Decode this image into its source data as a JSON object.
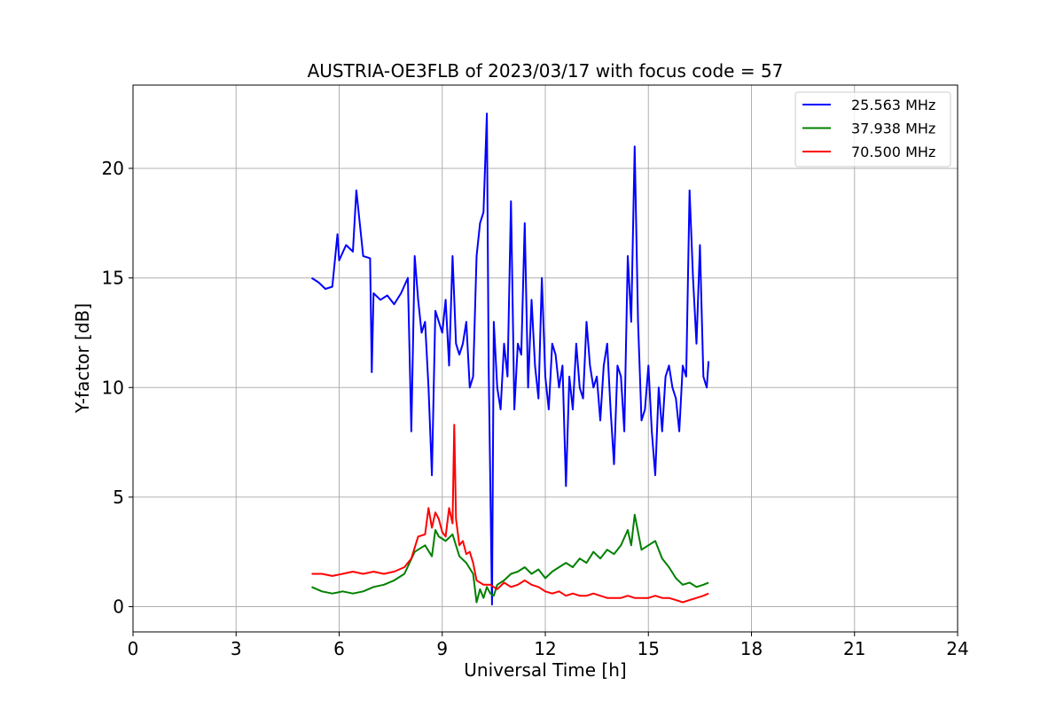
{
  "chart_data": {
    "type": "line",
    "title": "AUSTRIA-OE3FLB of 2023/03/17 with focus code = 57",
    "xlabel": "Universal Time [h]",
    "ylabel": "Y-factor [dB]",
    "xlim": [
      0,
      24
    ],
    "ylim": [
      -1.15,
      23.8
    ],
    "xticks": [
      0,
      3,
      6,
      9,
      12,
      15,
      18,
      21,
      24
    ],
    "yticks": [
      0,
      5,
      10,
      15,
      20
    ],
    "grid": true,
    "legend_position": "top-right",
    "series": [
      {
        "name": "25.563 MHz",
        "color": "#0000ff",
        "x": [
          5.2,
          5.4,
          5.6,
          5.8,
          5.95,
          6.0,
          6.2,
          6.4,
          6.5,
          6.7,
          6.9,
          6.95,
          7.0,
          7.2,
          7.4,
          7.6,
          7.8,
          8.0,
          8.1,
          8.15,
          8.2,
          8.3,
          8.4,
          8.5,
          8.6,
          8.7,
          8.8,
          8.9,
          9.0,
          9.1,
          9.2,
          9.3,
          9.4,
          9.5,
          9.6,
          9.7,
          9.8,
          9.9,
          10.0,
          10.1,
          10.2,
          10.3,
          10.35,
          10.45,
          10.5,
          10.6,
          10.7,
          10.8,
          10.9,
          11.0,
          11.1,
          11.2,
          11.3,
          11.4,
          11.5,
          11.6,
          11.7,
          11.8,
          11.9,
          12.0,
          12.1,
          12.2,
          12.3,
          12.4,
          12.5,
          12.6,
          12.7,
          12.8,
          12.9,
          13.0,
          13.1,
          13.2,
          13.3,
          13.4,
          13.5,
          13.6,
          13.7,
          13.8,
          13.9,
          14.0,
          14.1,
          14.2,
          14.3,
          14.4,
          14.5,
          14.6,
          14.7,
          14.8,
          14.9,
          15.0,
          15.1,
          15.2,
          15.3,
          15.4,
          15.5,
          15.6,
          15.7,
          15.8,
          15.9,
          16.0,
          16.1,
          16.2,
          16.3,
          16.4,
          16.5,
          16.6,
          16.7,
          16.75
        ],
        "y": [
          15.0,
          14.8,
          14.5,
          14.6,
          17.0,
          15.8,
          16.5,
          16.2,
          19.0,
          16.0,
          15.9,
          10.7,
          14.3,
          14.0,
          14.2,
          13.8,
          14.3,
          15.0,
          8.0,
          12.0,
          16.0,
          14.0,
          12.5,
          13.0,
          10.0,
          6.0,
          13.5,
          13.0,
          12.5,
          14.0,
          11.0,
          16.0,
          12.0,
          11.5,
          12.0,
          13.0,
          10.0,
          10.5,
          16.0,
          17.5,
          18.0,
          22.5,
          11.0,
          0.1,
          13.0,
          10.0,
          9.0,
          12.0,
          10.5,
          18.5,
          9.0,
          12.0,
          11.5,
          17.5,
          10.0,
          14.0,
          11.0,
          9.5,
          15.0,
          10.5,
          9.0,
          12.0,
          11.5,
          10.0,
          11.0,
          5.5,
          10.5,
          9.0,
          12.0,
          10.0,
          9.5,
          13.0,
          11.0,
          10.0,
          10.5,
          8.5,
          11.0,
          12.0,
          9.0,
          6.5,
          11.0,
          10.5,
          8.0,
          16.0,
          13.0,
          21.0,
          13.0,
          8.5,
          9.0,
          11.0,
          8.0,
          6.0,
          10.0,
          8.0,
          10.5,
          11.0,
          10.0,
          9.5,
          8.0,
          11.0,
          10.5,
          19.0,
          15.0,
          12.0,
          16.5,
          10.5,
          10.0,
          11.2
        ]
      },
      {
        "name": "37.938 MHz",
        "color": "#008000",
        "x": [
          5.2,
          5.5,
          5.8,
          6.1,
          6.4,
          6.7,
          7.0,
          7.3,
          7.6,
          7.9,
          8.2,
          8.5,
          8.7,
          8.8,
          8.9,
          9.1,
          9.3,
          9.5,
          9.7,
          9.9,
          10.0,
          10.1,
          10.2,
          10.3,
          10.4,
          10.5,
          10.6,
          10.8,
          11.0,
          11.2,
          11.4,
          11.6,
          11.8,
          12.0,
          12.2,
          12.4,
          12.6,
          12.8,
          13.0,
          13.2,
          13.4,
          13.6,
          13.8,
          14.0,
          14.2,
          14.4,
          14.5,
          14.6,
          14.8,
          15.0,
          15.2,
          15.4,
          15.6,
          15.8,
          16.0,
          16.2,
          16.4,
          16.6,
          16.75
        ],
        "y": [
          0.9,
          0.7,
          0.6,
          0.7,
          0.6,
          0.7,
          0.9,
          1.0,
          1.2,
          1.5,
          2.5,
          2.8,
          2.3,
          3.5,
          3.2,
          3.0,
          3.3,
          2.3,
          2.0,
          1.5,
          0.2,
          0.8,
          0.4,
          0.9,
          0.6,
          0.5,
          1.0,
          1.2,
          1.5,
          1.6,
          1.8,
          1.5,
          1.7,
          1.3,
          1.6,
          1.8,
          2.0,
          1.8,
          2.2,
          2.0,
          2.5,
          2.2,
          2.6,
          2.4,
          2.8,
          3.5,
          2.8,
          4.2,
          2.6,
          2.8,
          3.0,
          2.2,
          1.8,
          1.3,
          1.0,
          1.1,
          0.9,
          1.0,
          1.1
        ]
      },
      {
        "name": "70.500 MHz",
        "color": "#ff0000",
        "x": [
          5.2,
          5.5,
          5.8,
          6.1,
          6.4,
          6.7,
          7.0,
          7.3,
          7.6,
          7.9,
          8.1,
          8.3,
          8.5,
          8.6,
          8.7,
          8.8,
          8.9,
          9.0,
          9.1,
          9.2,
          9.3,
          9.35,
          9.4,
          9.5,
          9.6,
          9.7,
          9.8,
          9.9,
          10.0,
          10.2,
          10.4,
          10.6,
          10.8,
          11.0,
          11.2,
          11.4,
          11.6,
          11.8,
          12.0,
          12.2,
          12.4,
          12.6,
          12.8,
          13.0,
          13.2,
          13.4,
          13.6,
          13.8,
          14.0,
          14.2,
          14.4,
          14.6,
          14.8,
          15.0,
          15.2,
          15.4,
          15.6,
          15.8,
          16.0,
          16.2,
          16.4,
          16.6,
          16.75
        ],
        "y": [
          1.5,
          1.5,
          1.4,
          1.5,
          1.6,
          1.5,
          1.6,
          1.5,
          1.6,
          1.8,
          2.2,
          3.2,
          3.3,
          4.5,
          3.6,
          4.3,
          4.0,
          3.4,
          3.2,
          4.5,
          3.8,
          8.3,
          4.0,
          2.8,
          3.0,
          2.4,
          2.5,
          2.0,
          1.2,
          1.0,
          1.0,
          0.8,
          1.1,
          0.9,
          1.0,
          1.2,
          1.0,
          0.9,
          0.7,
          0.6,
          0.7,
          0.5,
          0.6,
          0.5,
          0.5,
          0.6,
          0.5,
          0.4,
          0.4,
          0.4,
          0.5,
          0.4,
          0.4,
          0.4,
          0.5,
          0.4,
          0.4,
          0.3,
          0.2,
          0.3,
          0.4,
          0.5,
          0.6
        ]
      }
    ]
  }
}
